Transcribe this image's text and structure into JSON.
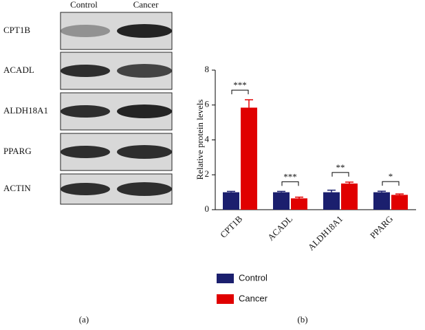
{
  "blot": {
    "columns": [
      "Control",
      "Cancer"
    ],
    "rows": [
      "CPT1B",
      "ACADL",
      "ALDH18A1",
      "PPARG",
      "ACTIN"
    ]
  },
  "panel_labels": [
    "(a)",
    "(b)"
  ],
  "chart_data": {
    "type": "bar",
    "ylabel": "Relative protein levels",
    "categories": [
      "CPT1B",
      "ACADL",
      "ALDH18A1",
      "PPARG"
    ],
    "series": [
      {
        "name": "Control",
        "color": "#1b1f6e",
        "values": [
          1.0,
          1.0,
          1.0,
          1.0
        ],
        "errors": [
          0.05,
          0.05,
          0.12,
          0.06
        ]
      },
      {
        "name": "Cancer",
        "color": "#e00000",
        "values": [
          5.85,
          0.65,
          1.5,
          0.85
        ],
        "errors": [
          0.45,
          0.07,
          0.08,
          0.05
        ]
      }
    ],
    "significance": [
      "***",
      "***",
      "**",
      "*"
    ],
    "ylim": [
      0,
      8
    ],
    "yticks": [
      0,
      2,
      4,
      6,
      8
    ],
    "grid": false,
    "legend": "bottom"
  }
}
